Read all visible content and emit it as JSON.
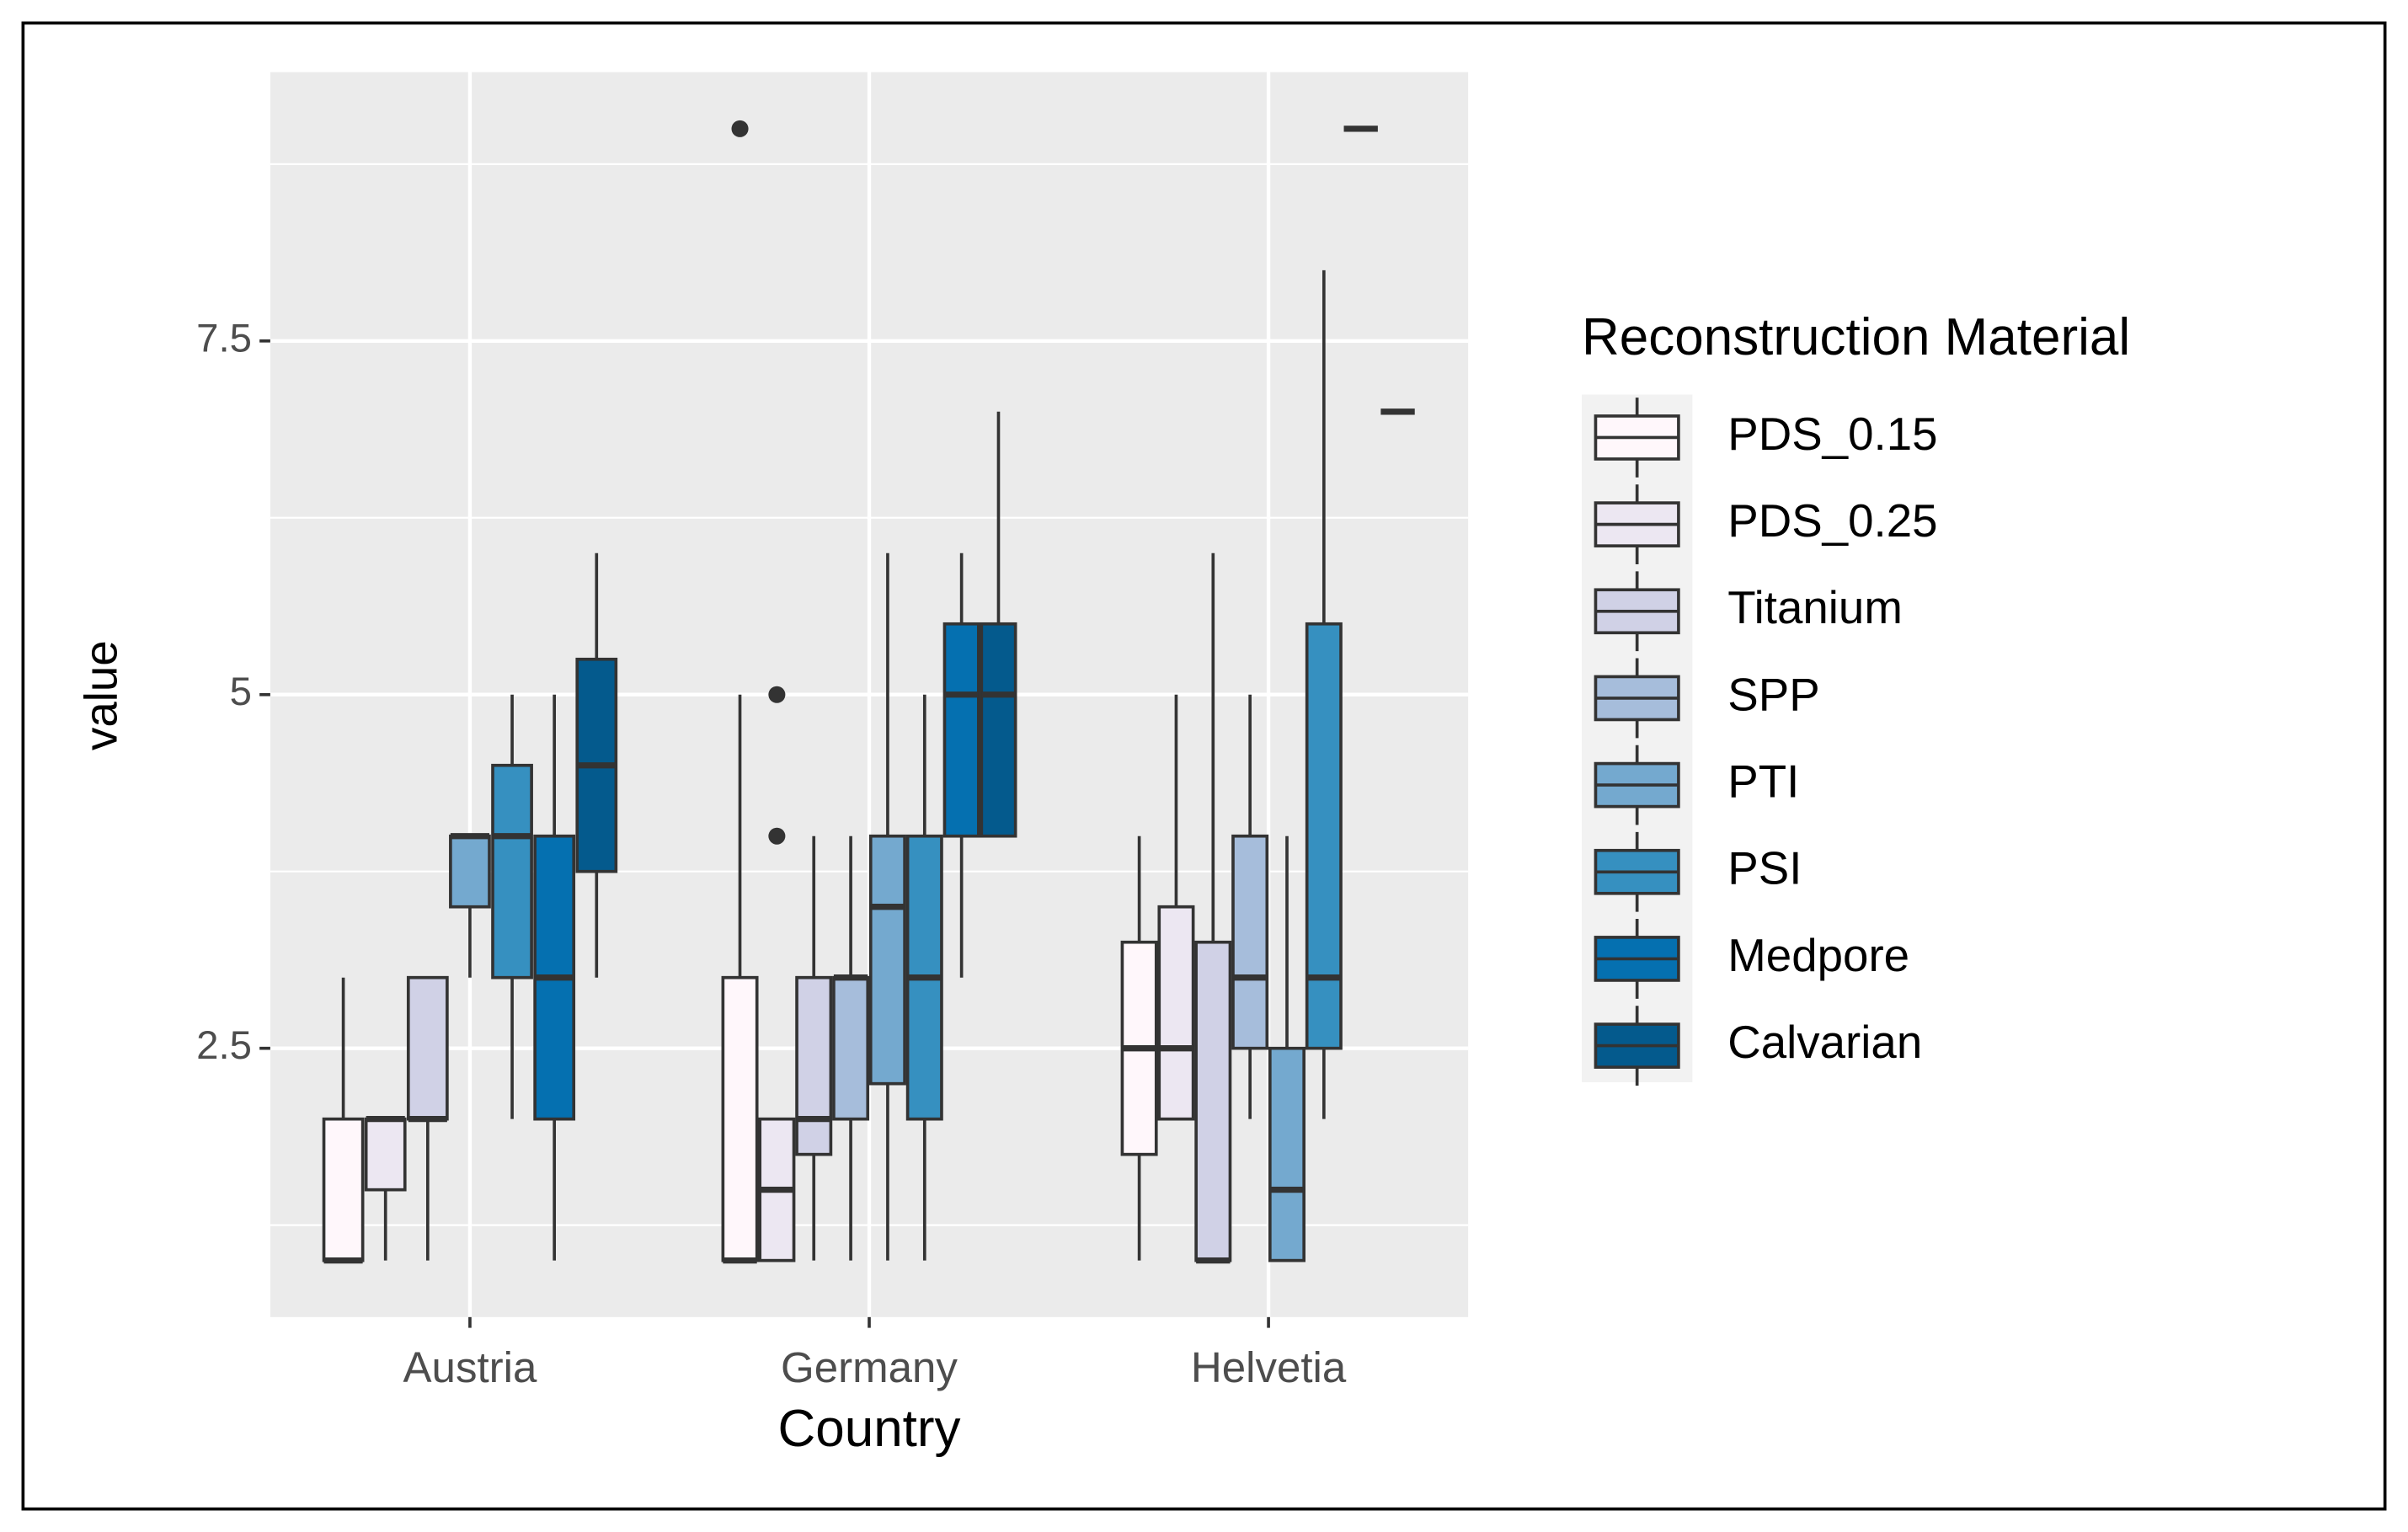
{
  "chart_data": {
    "type": "boxplot",
    "x_label": "Country",
    "y_label": "value",
    "legend_title": "Reconstruction Material",
    "legend_position": "right",
    "grid": true,
    "categories": [
      "Austria",
      "Germany",
      "Helvetia"
    ],
    "ylim": [
      0.6,
      9.4
    ],
    "yticks": [
      2.5,
      5.0,
      7.5
    ],
    "minor_yticks": [
      1.25,
      3.75,
      6.25,
      8.75
    ],
    "series": [
      {
        "name": "PDS_0.15",
        "color": "#fff7fb",
        "stats": [
          {
            "min": 1,
            "q1": 1,
            "median": 1,
            "q3": 2,
            "max": 3,
            "outliers": []
          },
          {
            "min": 1,
            "q1": 1,
            "median": 1,
            "q3": 3,
            "max": 5,
            "outliers": [
              9
            ]
          },
          {
            "min": 1,
            "q1": 1.75,
            "median": 2.5,
            "q3": 3.25,
            "max": 4,
            "outliers": []
          }
        ]
      },
      {
        "name": "PDS_0.25",
        "color": "#ece7f2",
        "stats": [
          {
            "min": 1,
            "q1": 1.5,
            "median": 2,
            "q3": 2,
            "max": 2,
            "outliers": []
          },
          {
            "min": 1,
            "q1": 1,
            "median": 1.5,
            "q3": 2,
            "max": 2,
            "outliers": [
              5,
              4
            ]
          },
          {
            "min": 2,
            "q1": 2,
            "median": 2.5,
            "q3": 3.5,
            "max": 5,
            "outliers": []
          }
        ]
      },
      {
        "name": "Titanium",
        "color": "#d0d1e6",
        "stats": [
          {
            "min": 1,
            "q1": 2,
            "median": 2,
            "q3": 3,
            "max": 3,
            "outliers": []
          },
          {
            "min": 1,
            "q1": 1.75,
            "median": 2,
            "q3": 3,
            "max": 4,
            "outliers": []
          },
          {
            "min": 1,
            "q1": 1,
            "median": 1,
            "q3": 3.25,
            "max": 6,
            "outliers": []
          }
        ]
      },
      {
        "name": "SPP",
        "color": "#a6bddb",
        "stats": [
          null,
          {
            "min": 1,
            "q1": 2,
            "median": 3,
            "q3": 3,
            "max": 4,
            "outliers": []
          },
          {
            "min": 2,
            "q1": 2.5,
            "median": 3,
            "q3": 4,
            "max": 5,
            "outliers": []
          }
        ]
      },
      {
        "name": "PTI",
        "color": "#74a9cf",
        "stats": [
          {
            "min": 3,
            "q1": 3.5,
            "median": 4,
            "q3": 4,
            "max": 4,
            "outliers": []
          },
          {
            "min": 1,
            "q1": 2.25,
            "median": 3.5,
            "q3": 4,
            "max": 6,
            "outliers": []
          },
          {
            "min": 1,
            "q1": 1,
            "median": 1.5,
            "q3": 2.5,
            "max": 4,
            "outliers": []
          }
        ]
      },
      {
        "name": "PSI",
        "color": "#3690c0",
        "stats": [
          {
            "min": 2,
            "q1": 3,
            "median": 4,
            "q3": 4.5,
            "max": 5,
            "outliers": []
          },
          {
            "min": 1,
            "q1": 2,
            "median": 3,
            "q3": 4,
            "max": 5,
            "outliers": []
          },
          {
            "min": 2,
            "q1": 2.5,
            "median": 3,
            "q3": 5.5,
            "max": 8,
            "outliers": []
          }
        ]
      },
      {
        "name": "Medpore",
        "color": "#0570b0",
        "stats": [
          {
            "min": 1,
            "q1": 2,
            "median": 3,
            "q3": 4,
            "max": 5,
            "outliers": []
          },
          {
            "min": 3,
            "q1": 4,
            "median": 5,
            "q3": 5.5,
            "max": 6,
            "outliers": []
          },
          {
            "min": 9,
            "q1": 9,
            "median": 9,
            "q3": 9,
            "max": 9,
            "outliers": []
          }
        ]
      },
      {
        "name": "Calvarian",
        "color": "#045a8d",
        "stats": [
          {
            "min": 3,
            "q1": 3.75,
            "median": 4.5,
            "q3": 5.25,
            "max": 6,
            "outliers": []
          },
          {
            "min": 4,
            "q1": 4,
            "median": 5,
            "q3": 5.5,
            "max": 7,
            "outliers": []
          },
          {
            "min": 7,
            "q1": 7,
            "median": 7,
            "q3": 7,
            "max": 7,
            "outliers": []
          }
        ]
      }
    ]
  }
}
